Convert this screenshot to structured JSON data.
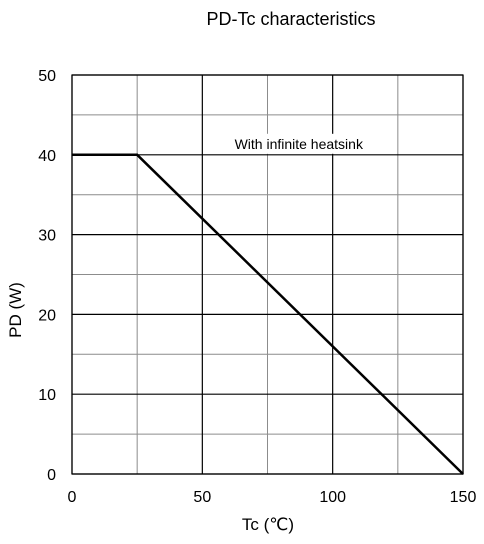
{
  "chart_data": {
    "type": "line",
    "title": "PD-Tc  characteristics",
    "xlabel": "Tc  (℃)",
    "ylabel": "PD  (W)",
    "xlim": [
      0,
      150
    ],
    "ylim": [
      0,
      50
    ],
    "x_major_ticks": [
      0,
      50,
      100,
      150
    ],
    "x_minor_ticks": [
      25,
      75,
      125
    ],
    "y_major_ticks": [
      0,
      10,
      20,
      30,
      40,
      50
    ],
    "y_minor_ticks": [
      5,
      15,
      25,
      35,
      45
    ],
    "grid": true,
    "series": [
      {
        "values": [
          {
            "x": 0,
            "y": 40
          },
          {
            "x": 25,
            "y": 40
          },
          {
            "x": 150,
            "y": 0
          }
        ]
      }
    ],
    "annotations": [
      {
        "text": "With infinite heatsink",
        "x": 87,
        "y": 40
      }
    ]
  }
}
